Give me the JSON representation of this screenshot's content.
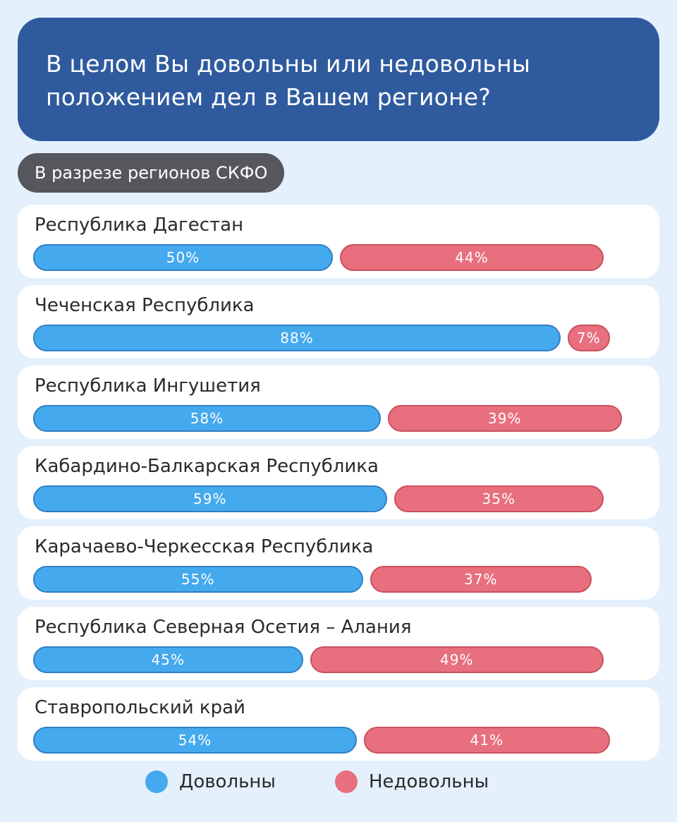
{
  "header": {
    "title_line1": "В целом Вы довольны или недовольны",
    "title_line2": "положением дел в Вашем регионе?"
  },
  "subtitle": "В разрезе регионов СКФО",
  "colors": {
    "satisfied": "#45a9ee",
    "dissatisfied": "#e8707e"
  },
  "legend": {
    "satisfied": "Довольны",
    "dissatisfied": "Недовольны"
  },
  "chart_data": {
    "type": "bar",
    "orientation": "horizontal",
    "stacked": true,
    "categories": [
      "Республика Дагестан",
      "Чеченская Республика",
      "Республика Ингушетия",
      "Кабардино-Балкарская Республика",
      "Карачаево-Черкесская Республика",
      "Республика Северная Осетия – Алания",
      "Ставропольский край"
    ],
    "series": [
      {
        "name": "Довольны",
        "values": [
          50,
          88,
          58,
          59,
          55,
          45,
          54
        ],
        "labels": [
          "50%",
          "88%",
          "58%",
          "59%",
          "55%",
          "45%",
          "54%"
        ]
      },
      {
        "name": "Недовольны",
        "values": [
          44,
          7,
          39,
          35,
          37,
          49,
          41
        ],
        "labels": [
          "44%",
          "7%",
          "39%",
          "35%",
          "37%",
          "49%",
          "41%"
        ]
      }
    ],
    "unit": "%",
    "legend_position": "bottom"
  }
}
